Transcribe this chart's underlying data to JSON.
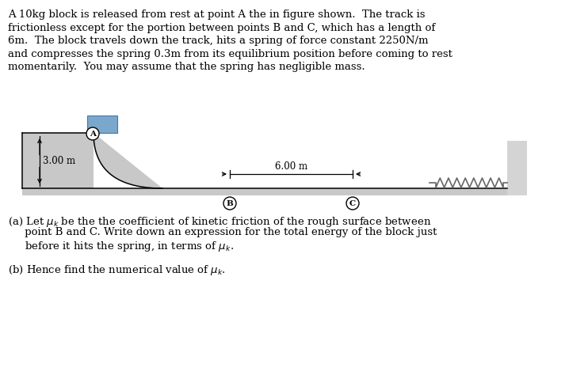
{
  "bg_color": "#ffffff",
  "text_color": "#000000",
  "para_line1": "A 10kg block is released from rest at point A the in figure shown.  The track is",
  "para_line2": "frictionless except for the portion between points B and C, which has a length of",
  "para_line3": "6m.  The block travels down the track, hits a spring of force constant 2250N/m",
  "para_line4": "and compresses the spring 0.3m from its equilibrium position before coming to rest",
  "para_line5": "momentarily.  You may assume that the spring has negligible mass.",
  "track_color": "#c8c8c8",
  "block_color": "#7aa8cc",
  "wall_color": "#d4d4d4",
  "label_3m": "3.00 m",
  "label_6m": "6.00 m",
  "spring_color": "#666666",
  "q_a_line1": "(a) Let $\\mu_k$ be the the coefficient of kinetic friction of the rough surface between",
  "q_a_line2": "     point B and C. Write down an expression for the total energy of the block just",
  "q_a_line3": "     before it hits the spring, in terms of $\\mu_k$.",
  "q_b": "(b) Hence find the numerical value of $\\mu_k$."
}
